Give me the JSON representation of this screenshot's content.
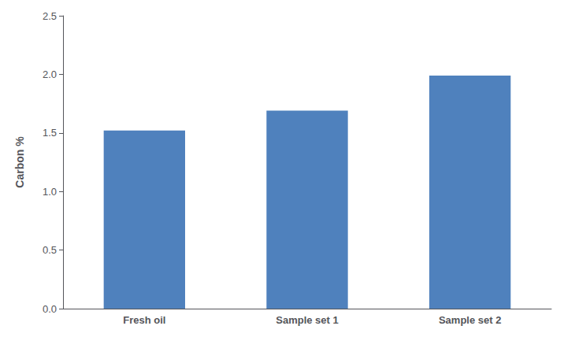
{
  "chart_data": {
    "type": "bar",
    "categories": [
      "Fresh oil",
      "Sample set 1",
      "Sample set 2"
    ],
    "values": [
      1.52,
      1.69,
      1.99
    ],
    "color": "#4F81BD",
    "ylabel": "Carbon %",
    "ylim": [
      0,
      2.5
    ],
    "yticks": [
      {
        "value": 0,
        "label": "0.0"
      },
      {
        "value": 0.5,
        "label": "0.5"
      },
      {
        "value": 1.0,
        "label": "1.0"
      },
      {
        "value": 1.5,
        "label": "1.5"
      },
      {
        "value": 2.0,
        "label": "2.0"
      },
      {
        "value": 2.5,
        "label": "2.5"
      }
    ],
    "grid": false
  }
}
